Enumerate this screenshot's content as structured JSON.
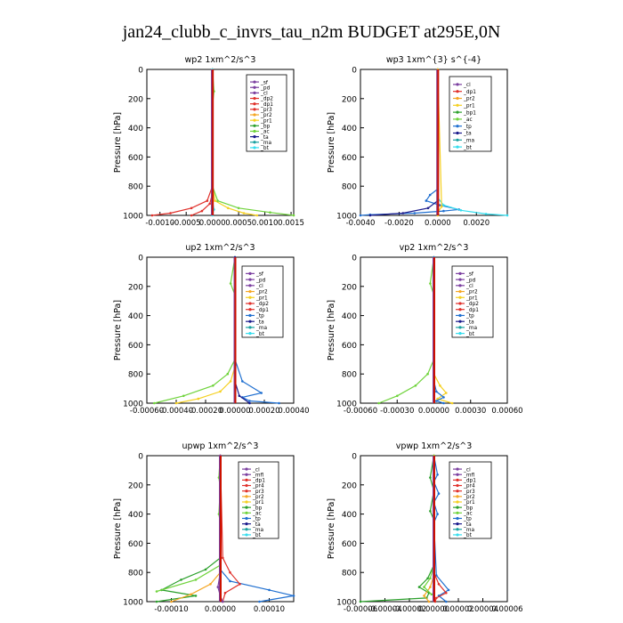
{
  "title": "jan24_clubb_c_invrs_tau_n2m  BUDGET at295E,0N",
  "colors": {
    "sf": "#7b3fa0",
    "pd": "#7b3fa0",
    "cl": "#7b3fa0",
    "mfl": "#7b3fa0",
    "dp2": "#e0302a",
    "dp1": "#e0302a",
    "pr4": "#e0302a",
    "pr3": "#e0302a",
    "pr2": "#f5a623",
    "pr1": "#f5d020",
    "bp": "#2ca02c",
    "ac": "#6fd33b",
    "tp": "#1f6fd0",
    "ta": "#1a1a8c",
    "ma": "#1aa0a0",
    "bt": "#33ddee",
    "zero_line": "#cc1100"
  },
  "chart_data": [
    {
      "type": "line",
      "title": "wp2   1xm^2/s^3",
      "ylabel": "Pressure  [hPa]",
      "xlim": [
        -0.00125,
        0.00155
      ],
      "ylim": [
        1000,
        0
      ],
      "xticks": [
        "-0.0010",
        "-0.0005",
        "0.0000",
        "0.0005",
        "0.0010",
        "0.0015"
      ],
      "xtick_values": [
        -0.001,
        -0.0005,
        0.0,
        0.0005,
        0.001,
        0.0015
      ],
      "yticks": [
        "0",
        "200",
        "400",
        "600",
        "800",
        "1000"
      ],
      "legend": [
        "_sf",
        "_pd",
        "_cl",
        "_dp2",
        "_dp1",
        "_pr3",
        "_pr2",
        "_pr1",
        "_bp",
        "_ac",
        "_ta",
        "_ma",
        "_bt"
      ],
      "series": [
        {
          "name": "_pr1",
          "key": "pr1",
          "x": [
            0,
            0,
            5e-05,
            0.0003,
            0.0006,
            0.00085
          ],
          "y": [
            0,
            800,
            900,
            950,
            985,
            1000
          ]
        },
        {
          "name": "_ac",
          "key": "ac",
          "x": [
            0,
            3e-05,
            0,
            0,
            0.0001,
            0.0005,
            0.0011,
            0.00155
          ],
          "y": [
            0,
            150,
            250,
            800,
            900,
            950,
            980,
            1000
          ]
        },
        {
          "name": "_dp1",
          "key": "dp1",
          "x": [
            0,
            0,
            -0.0001,
            -0.0004,
            -0.0008,
            -0.00115
          ],
          "y": [
            0,
            800,
            900,
            950,
            985,
            1000
          ]
        },
        {
          "name": "_dp2",
          "key": "dp2",
          "x": [
            0,
            0,
            -5e-05,
            -0.0002,
            -0.0004
          ],
          "y": [
            0,
            850,
            920,
            970,
            1000
          ]
        },
        {
          "name": "_bt",
          "key": "bt",
          "x": [
            0,
            0,
            3e-05,
            0
          ],
          "y": [
            0,
            900,
            960,
            1000
          ]
        }
      ]
    },
    {
      "type": "line",
      "title": "wp3   1xm^{3} s^{-4}",
      "ylabel": "Pressure  [hPa]",
      "xlim": [
        -0.004,
        0.0036
      ],
      "ylim": [
        1000,
        0
      ],
      "xticks": [
        "-0.0040",
        "-0.0020",
        "0.0000",
        "0.0020"
      ],
      "xtick_values": [
        -0.004,
        -0.002,
        0.0,
        0.002
      ],
      "yticks": [
        "0",
        "200",
        "400",
        "600",
        "800",
        "1000"
      ],
      "legend": [
        "_cl",
        "_dp1",
        "_pr2",
        "_pr1",
        "_bp1",
        "_ac",
        "_tp",
        "_ta",
        "_ma",
        "_bt"
      ],
      "series": [
        {
          "name": "_tp",
          "key": "tp",
          "x": [
            0,
            0,
            -0.0004,
            -0.0006,
            0.0001,
            0.0011,
            0.0003,
            -0.0012,
            -0.0035,
            -0.004
          ],
          "y": [
            0,
            820,
            860,
            900,
            930,
            960,
            970,
            985,
            995,
            1000
          ]
        },
        {
          "name": "_bt",
          "key": "bt",
          "x": [
            0,
            0,
            0.0003,
            0.0012,
            0.0025,
            0.0036
          ],
          "y": [
            0,
            880,
            930,
            965,
            990,
            1000
          ]
        },
        {
          "name": "_ta",
          "key": "ta",
          "x": [
            0,
            0,
            -0.0005,
            -0.0018,
            -0.0035
          ],
          "y": [
            0,
            900,
            950,
            985,
            1000
          ]
        },
        {
          "name": "_pr1",
          "key": "pr1",
          "x": [
            0,
            0.0002,
            0,
            0
          ],
          "y": [
            0,
            940,
            980,
            1000
          ]
        }
      ]
    },
    {
      "type": "line",
      "title": "up2   1xm^2/s^3",
      "ylabel": "Pressure  [hPa]",
      "xlim": [
        -0.0006,
        0.0004
      ],
      "ylim": [
        1000,
        0
      ],
      "xticks": [
        "-0.00060",
        "-0.00040",
        "-0.00020",
        "0.00000",
        "0.00020",
        "0.00040"
      ],
      "xtick_values": [
        -0.0006,
        -0.0004,
        -0.0002,
        0.0,
        0.0002,
        0.0004
      ],
      "yticks": [
        "0",
        "200",
        "400",
        "600",
        "800",
        "1000"
      ],
      "legend": [
        "_sf",
        "_pd",
        "_cl",
        "_pr2",
        "_pr1",
        "_dp2",
        "_dp1",
        "_tp",
        "_ta",
        "_ma",
        "_bt"
      ],
      "series": [
        {
          "name": "_dp1",
          "key": "ac",
          "x": [
            0,
            -3e-05,
            0,
            0,
            -5e-05,
            -0.00015,
            -0.00035,
            -0.00055
          ],
          "y": [
            0,
            180,
            260,
            700,
            800,
            880,
            950,
            1000
          ]
        },
        {
          "name": "_pr1",
          "key": "pr1",
          "x": [
            0,
            0,
            -3e-05,
            -0.0001,
            -0.00025,
            -0.0004
          ],
          "y": [
            0,
            750,
            850,
            920,
            970,
            1000
          ]
        },
        {
          "name": "_tp",
          "key": "tp",
          "x": [
            0,
            0,
            5e-05,
            0.00018,
            5e-05,
            0.0001,
            0.0003
          ],
          "y": [
            0,
            700,
            850,
            930,
            960,
            985,
            1000
          ]
        },
        {
          "name": "_ta",
          "key": "ta",
          "x": [
            0,
            0,
            3e-05,
            0.0001
          ],
          "y": [
            0,
            850,
            950,
            1000
          ]
        }
      ]
    },
    {
      "type": "line",
      "title": "vp2   1xm^2/s^3",
      "ylabel": "Pressure  [hPa]",
      "xlim": [
        -0.0006,
        0.0006
      ],
      "ylim": [
        1000,
        0
      ],
      "xticks": [
        "-0.00060",
        "-0.00030",
        "0.00000",
        "0.00030",
        "0.00060"
      ],
      "xtick_values": [
        -0.0006,
        -0.0003,
        0.0,
        0.0003,
        0.0006
      ],
      "yticks": [
        "0",
        "200",
        "400",
        "600",
        "800",
        "1000"
      ],
      "legend": [
        "_sf",
        "_pd",
        "_cl",
        "_pr2",
        "_pr1",
        "_dp2",
        "_dp1",
        "_tp",
        "_ta",
        "_ma",
        "_bt"
      ],
      "series": [
        {
          "name": "_dp1",
          "key": "ac",
          "x": [
            0,
            -3e-05,
            0,
            0,
            -5e-05,
            -0.00015,
            -0.0003,
            -0.00045
          ],
          "y": [
            0,
            180,
            260,
            700,
            800,
            880,
            950,
            1000
          ]
        },
        {
          "name": "_pr1",
          "key": "pr1",
          "x": [
            0,
            0,
            5e-05,
            0.0001,
            3e-05,
            0.00015
          ],
          "y": [
            0,
            800,
            880,
            930,
            970,
            1000
          ]
        },
        {
          "name": "_tp",
          "key": "tp",
          "x": [
            0,
            0,
            2e-05,
            8e-05,
            2e-05,
            8e-05
          ],
          "y": [
            0,
            850,
            920,
            960,
            985,
            1000
          ]
        }
      ]
    },
    {
      "type": "line",
      "title": "upwp   1xm^2/s^3",
      "ylabel": "Pressure  [hPa]",
      "xlim": [
        -0.00015,
        0.00015
      ],
      "ylim": [
        1000,
        0
      ],
      "xticks": [
        "-0.00010",
        "0.00000",
        "0.00010"
      ],
      "xtick_values": [
        -0.0001,
        0.0,
        0.0001
      ],
      "yticks": [
        "0",
        "200",
        "400",
        "600",
        "800",
        "1000"
      ],
      "legend": [
        "_cl",
        "_mfl",
        "_dp1",
        "_pr4",
        "_pr3",
        "_pr2",
        "_pr1",
        "_bp",
        "_ac",
        "_tp",
        "_ta",
        "_ma",
        "_bt"
      ],
      "series": [
        {
          "name": "_bp",
          "key": "bp",
          "x": [
            0,
            0,
            -3e-05,
            -8e-05,
            -0.00012,
            -5e-05,
            -0.00013
          ],
          "y": [
            0,
            700,
            780,
            850,
            920,
            960,
            1000
          ]
        },
        {
          "name": "_ac",
          "key": "ac",
          "x": [
            0,
            -3e-06,
            0,
            -3e-06,
            0,
            0,
            -5e-05,
            -0.00013
          ],
          "y": [
            0,
            150,
            220,
            400,
            460,
            750,
            850,
            930
          ]
        },
        {
          "name": "_pr2",
          "key": "pr2",
          "x": [
            0,
            0,
            -2e-05,
            -6e-05,
            -0.0001
          ],
          "y": [
            0,
            800,
            880,
            950,
            1000
          ]
        },
        {
          "name": "_tp",
          "key": "tp",
          "x": [
            0,
            0,
            2e-05,
            0.0001,
            0.00015,
            8e-05
          ],
          "y": [
            0,
            780,
            860,
            920,
            960,
            1000
          ]
        },
        {
          "name": "_dp1",
          "key": "dp1",
          "x": [
            0,
            5e-06,
            2e-05,
            4e-05,
            1e-05,
            5e-06
          ],
          "y": [
            0,
            700,
            800,
            880,
            940,
            1000
          ]
        },
        {
          "name": "_cl",
          "key": "cl",
          "x": [
            0,
            0,
            -5e-06,
            0,
            5e-06
          ],
          "y": [
            0,
            800,
            900,
            960,
            1000
          ]
        }
      ]
    },
    {
      "type": "line",
      "title": "vpwp   1xm^2/s^3",
      "ylabel": "Pressure  [hPa]",
      "xlim": [
        -6e-05,
        6e-05
      ],
      "ylim": [
        1000,
        0
      ],
      "xticks": [
        "-0.00006",
        "-0.00004",
        "-0.00002",
        "0.00000",
        "0.00002",
        "0.00004",
        "0.00006"
      ],
      "xtick_values": [
        -6e-05,
        -4e-05,
        -2e-05,
        0.0,
        2e-05,
        4e-05,
        6e-05
      ],
      "yticks": [
        "0",
        "200",
        "400",
        "600",
        "800",
        "1000"
      ],
      "legend": [
        "_cl",
        "_mfl",
        "_dp1",
        "_pr4",
        "_pr3",
        "_pr2",
        "_pr1",
        "_bp",
        "_ac",
        "_tp",
        "_ta",
        "_ma",
        "_bt"
      ],
      "series": [
        {
          "name": "_bp",
          "key": "bp",
          "x": [
            0,
            -3e-06,
            0,
            -3e-06,
            0,
            0,
            -5e-06,
            -1.2e-05,
            -4e-06,
            -6e-06,
            -6e-05
          ],
          "y": [
            0,
            150,
            240,
            380,
            440,
            750,
            840,
            900,
            940,
            975,
            1000
          ]
        },
        {
          "name": "_tp",
          "key": "tp",
          "x": [
            0,
            3e-06,
            0,
            4e-06,
            0,
            3e-06,
            0,
            2e-06,
            1.2e-05,
            4e-06,
            1e-05
          ],
          "y": [
            0,
            130,
            180,
            260,
            320,
            400,
            460,
            820,
            920,
            960,
            1000
          ]
        },
        {
          "name": "_dp1",
          "key": "dp1",
          "x": [
            0,
            0,
            4e-06,
            1e-05,
            2e-06,
            1e-06
          ],
          "y": [
            0,
            800,
            880,
            940,
            975,
            1000
          ]
        },
        {
          "name": "_pr2",
          "key": "pr2",
          "x": [
            0,
            0,
            -3e-06,
            -8e-06,
            -4e-06
          ],
          "y": [
            0,
            820,
            900,
            960,
            1000
          ]
        },
        {
          "name": "_ac",
          "key": "ac",
          "x": [
            0,
            0,
            -3e-06,
            -8e-06,
            -2e-06
          ],
          "y": [
            0,
            750,
            840,
            900,
            950
          ]
        }
      ]
    }
  ]
}
